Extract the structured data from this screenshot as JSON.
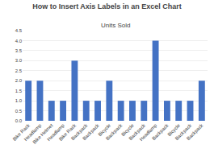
{
  "chart_data": {
    "type": "bar",
    "title": "How to Insert Axis Labels in an Excel Chart",
    "subtitle": "Units Sold",
    "categories": [
      "Bike Rack",
      "Headlamp",
      "Bike Helmet",
      "Headlamp",
      "Bike Rack",
      "Backpack",
      "Backpack",
      "Bicycle",
      "Backpack",
      "Bicycle",
      "Backpack",
      "Headlamp",
      "Backpack",
      "Bicycle",
      "Backpack",
      "Backpack"
    ],
    "values": [
      2,
      2,
      1,
      1,
      3,
      1,
      1,
      2,
      1,
      1,
      1,
      4,
      1,
      1,
      1,
      2
    ],
    "color": "#4472C4",
    "ylim": [
      0,
      4.5
    ],
    "yticks": [
      {
        "value": 0,
        "label": "0.0"
      },
      0.5,
      {
        "value": 1,
        "label": "1.0"
      },
      1.5,
      {
        "value": 2,
        "label": "2.0"
      },
      2.5,
      {
        "value": 3,
        "label": "3.0"
      },
      3.5,
      {
        "value": 4,
        "label": "4.0"
      },
      4.5
    ],
    "grid": true
  }
}
